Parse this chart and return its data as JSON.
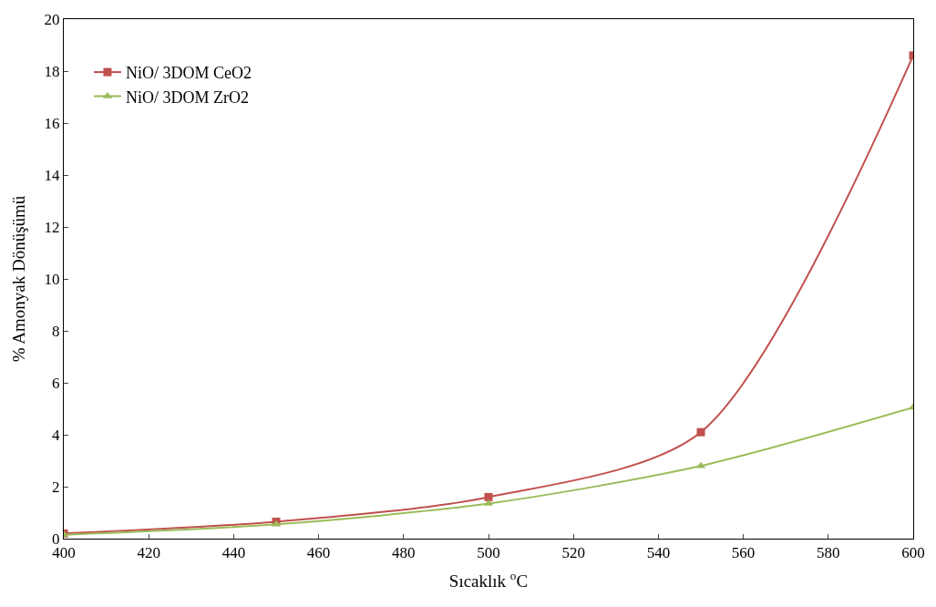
{
  "chart_data": {
    "type": "line",
    "xlabel": "Sıcaklık $^{o}$C",
    "ylabel": "% Amonyak Dönüşümü",
    "x": [
      400,
      450,
      500,
      550,
      600
    ],
    "series": [
      {
        "name": "NiO/ 3DOM CeO2",
        "color": "#c0504d",
        "marker": "square",
        "values": [
          0.2,
          0.65,
          1.6,
          4.1,
          18.6
        ]
      },
      {
        "name": "NiO/ 3DOM ZrO2",
        "color": "#9bbb59",
        "marker": "triangle",
        "values": [
          0.15,
          0.55,
          1.35,
          2.8,
          5.05
        ]
      }
    ],
    "xlim": [
      400,
      600
    ],
    "xticks": [
      400,
      420,
      440,
      460,
      480,
      500,
      520,
      540,
      560,
      580,
      600
    ],
    "ylim": [
      0,
      20
    ],
    "yticks": [
      0,
      2,
      4,
      6,
      8,
      10,
      12,
      14,
      16,
      18,
      20
    ],
    "legend": "top left"
  }
}
